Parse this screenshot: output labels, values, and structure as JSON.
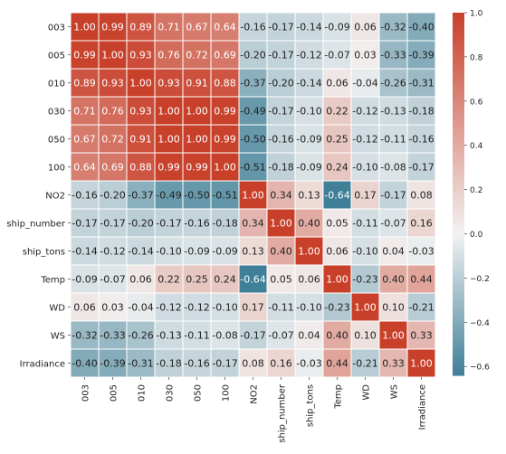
{
  "chart_data": {
    "type": "heatmap",
    "title": "",
    "xlabel": "",
    "ylabel": "",
    "rows": [
      "003",
      "005",
      "010",
      "030",
      "050",
      "100",
      "NO2",
      "ship_number",
      "ship_tons",
      "Temp",
      "WD",
      "WS",
      "Irradiance"
    ],
    "cols": [
      "003",
      "005",
      "010",
      "030",
      "050",
      "100",
      "NO2",
      "ship_number",
      "ship_tons",
      "Temp",
      "WD",
      "WS",
      "Irradiance"
    ],
    "values": [
      [
        1.0,
        0.99,
        0.89,
        0.71,
        0.67,
        0.64,
        -0.16,
        -0.17,
        -0.14,
        -0.09,
        0.06,
        -0.32,
        -0.4
      ],
      [
        0.99,
        1.0,
        0.93,
        0.76,
        0.72,
        0.69,
        -0.2,
        -0.17,
        -0.12,
        -0.07,
        0.03,
        -0.33,
        -0.39
      ],
      [
        0.89,
        0.93,
        1.0,
        0.93,
        0.91,
        0.88,
        -0.37,
        -0.2,
        -0.14,
        0.06,
        -0.04,
        -0.26,
        -0.31
      ],
      [
        0.71,
        0.76,
        0.93,
        1.0,
        1.0,
        0.99,
        -0.49,
        -0.17,
        -0.1,
        0.22,
        -0.12,
        -0.13,
        -0.18
      ],
      [
        0.67,
        0.72,
        0.91,
        1.0,
        1.0,
        0.99,
        -0.5,
        -0.16,
        -0.09,
        0.25,
        -0.12,
        -0.11,
        -0.16
      ],
      [
        0.64,
        0.69,
        0.88,
        0.99,
        0.99,
        1.0,
        -0.51,
        -0.18,
        -0.09,
        0.24,
        -0.1,
        -0.08,
        -0.17
      ],
      [
        -0.16,
        -0.2,
        -0.37,
        -0.49,
        -0.5,
        -0.51,
        1.0,
        0.34,
        0.13,
        -0.64,
        0.17,
        -0.17,
        0.08
      ],
      [
        -0.17,
        -0.17,
        -0.2,
        -0.17,
        -0.16,
        -0.18,
        0.34,
        1.0,
        0.4,
        0.05,
        -0.11,
        -0.07,
        0.16
      ],
      [
        -0.14,
        -0.12,
        -0.14,
        -0.1,
        -0.09,
        -0.09,
        0.13,
        0.4,
        1.0,
        0.06,
        -0.1,
        0.04,
        -0.03
      ],
      [
        -0.09,
        -0.07,
        0.06,
        0.22,
        0.25,
        0.24,
        -0.64,
        0.05,
        0.06,
        1.0,
        -0.23,
        0.4,
        0.44
      ],
      [
        0.06,
        0.03,
        -0.04,
        -0.12,
        -0.12,
        -0.1,
        0.17,
        -0.11,
        -0.1,
        -0.23,
        1.0,
        0.1,
        -0.21
      ],
      [
        -0.32,
        -0.33,
        -0.26,
        -0.13,
        -0.11,
        -0.08,
        -0.17,
        -0.07,
        0.04,
        0.4,
        0.1,
        1.0,
        0.33
      ],
      [
        -0.4,
        -0.39,
        -0.31,
        -0.18,
        -0.16,
        -0.17,
        0.08,
        0.16,
        -0.03,
        0.44,
        -0.21,
        0.33,
        1.0
      ]
    ],
    "colorbar": {
      "range": [
        -0.64,
        1.0
      ],
      "ticks": [
        1.0,
        0.8,
        0.6,
        0.4,
        0.2,
        0.0,
        -0.2,
        -0.4,
        -0.6
      ],
      "tick_labels": [
        "1.0",
        "0.8",
        "0.6",
        "0.4",
        "0.2",
        "0.0",
        "−0.2",
        "−0.4",
        "−0.6"
      ]
    },
    "colors": {
      "negative": "#3f7f97",
      "neutral": "#f2f2f2",
      "positive": "#c8402a",
      "cell_border": "#ffffff",
      "text_light": "#ffffff",
      "text_dark": "#222222",
      "axis_text": "#222222"
    }
  }
}
